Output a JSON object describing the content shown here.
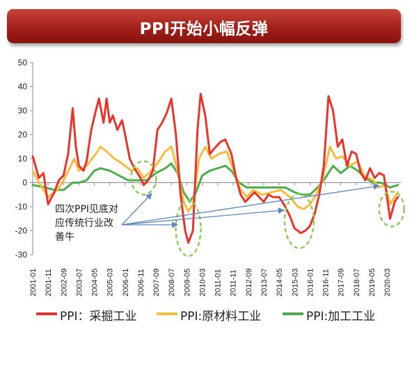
{
  "title": "PPI开始小幅反弹",
  "colors": {
    "mining": "#e8322a",
    "raw": "#f8bc3c",
    "processing": "#4aac4a",
    "banner": "#a31f19",
    "ellipse": "#8ccf5a",
    "arrow": "#5c86bf"
  },
  "annotation": {
    "text": "四次PPI见底对应传统行业改善牛"
  },
  "chart_data": {
    "type": "line",
    "ylim": [
      -30,
      50
    ],
    "yticks": [
      "50",
      "40",
      "30",
      "20",
      "10",
      "0",
      "-10",
      "-20",
      "-30"
    ],
    "xtick_labels": [
      "2001-01",
      "2001-11",
      "2002-09",
      "2003-07",
      "2004-05",
      "2005-03",
      "2006-01",
      "2006-11",
      "2007-09",
      "2008-07",
      "2009-05",
      "2010-03",
      "2011-01",
      "2011-11",
      "2012-09",
      "2013-07",
      "2014-05",
      "2015-03",
      "2016-01",
      "2016-11",
      "2017-09",
      "2018-07",
      "2019-05",
      "2020-03"
    ],
    "xlabel": "",
    "ylabel": "",
    "grid": false,
    "legend_position": "bottom",
    "series": [
      {
        "name": "PPI：采掘工业",
        "key": "mining",
        "points": [
          [
            "2001-01",
            11
          ],
          [
            "2001-05",
            2
          ],
          [
            "2001-08",
            4
          ],
          [
            "2001-11",
            -9
          ],
          [
            "2002-03",
            -4
          ],
          [
            "2002-06",
            1
          ],
          [
            "2002-09",
            3
          ],
          [
            "2002-12",
            12
          ],
          [
            "2003-03",
            31
          ],
          [
            "2003-05",
            15
          ],
          [
            "2003-07",
            7
          ],
          [
            "2003-10",
            5
          ],
          [
            "2003-12",
            9
          ],
          [
            "2004-03",
            22
          ],
          [
            "2004-06",
            30
          ],
          [
            "2004-08",
            35
          ],
          [
            "2004-11",
            25
          ],
          [
            "2005-01",
            35
          ],
          [
            "2005-03",
            25
          ],
          [
            "2005-05",
            28
          ],
          [
            "2005-08",
            22
          ],
          [
            "2005-11",
            26
          ],
          [
            "2006-01",
            20
          ],
          [
            "2006-04",
            10
          ],
          [
            "2006-07",
            6
          ],
          [
            "2006-11",
            2
          ],
          [
            "2007-01",
            -1
          ],
          [
            "2007-04",
            1
          ],
          [
            "2007-07",
            5
          ],
          [
            "2007-10",
            22
          ],
          [
            "2008-01",
            25
          ],
          [
            "2008-04",
            29
          ],
          [
            "2008-07",
            35
          ],
          [
            "2008-10",
            20
          ],
          [
            "2009-01",
            -5
          ],
          [
            "2009-04",
            -20
          ],
          [
            "2009-06",
            -25
          ],
          [
            "2009-09",
            -20
          ],
          [
            "2009-12",
            22
          ],
          [
            "2010-02",
            37
          ],
          [
            "2010-05",
            28
          ],
          [
            "2010-08",
            12
          ],
          [
            "2010-12",
            15
          ],
          [
            "2011-03",
            17
          ],
          [
            "2011-06",
            18
          ],
          [
            "2011-10",
            12
          ],
          [
            "2012-01",
            2
          ],
          [
            "2012-04",
            -5
          ],
          [
            "2012-07",
            -8
          ],
          [
            "2012-10",
            -6
          ],
          [
            "2013-01",
            -4
          ],
          [
            "2013-04",
            -6
          ],
          [
            "2013-07",
            -8
          ],
          [
            "2013-10",
            -5
          ],
          [
            "2014-01",
            -6
          ],
          [
            "2014-05",
            -6
          ],
          [
            "2014-09",
            -10
          ],
          [
            "2014-12",
            -14
          ],
          [
            "2015-03",
            -19
          ],
          [
            "2015-07",
            -21
          ],
          [
            "2015-10",
            -20
          ],
          [
            "2016-01",
            -18
          ],
          [
            "2016-04",
            -13
          ],
          [
            "2016-07",
            -5
          ],
          [
            "2016-10",
            7
          ],
          [
            "2017-01",
            36
          ],
          [
            "2017-04",
            30
          ],
          [
            "2017-07",
            15
          ],
          [
            "2017-10",
            18
          ],
          [
            "2018-01",
            7
          ],
          [
            "2018-04",
            13
          ],
          [
            "2018-07",
            12
          ],
          [
            "2018-10",
            4
          ],
          [
            "2019-01",
            1
          ],
          [
            "2019-04",
            6
          ],
          [
            "2019-07",
            2
          ],
          [
            "2019-10",
            4
          ],
          [
            "2020-01",
            3
          ],
          [
            "2020-05",
            -15
          ],
          [
            "2020-08",
            -8
          ],
          [
            "2020-10",
            -6
          ]
        ]
      },
      {
        "name": "PPI:原材料工业",
        "key": "raw",
        "points": [
          [
            "2001-01",
            5
          ],
          [
            "2001-06",
            -1
          ],
          [
            "2001-11",
            -6
          ],
          [
            "2002-05",
            -3
          ],
          [
            "2002-09",
            1
          ],
          [
            "2003-01",
            6
          ],
          [
            "2003-04",
            10
          ],
          [
            "2003-07",
            5
          ],
          [
            "2003-12",
            7
          ],
          [
            "2004-06",
            12
          ],
          [
            "2004-09",
            15
          ],
          [
            "2005-01",
            13
          ],
          [
            "2005-06",
            10
          ],
          [
            "2005-11",
            8
          ],
          [
            "2006-05",
            5
          ],
          [
            "2006-09",
            6
          ],
          [
            "2007-01",
            2
          ],
          [
            "2007-06",
            5
          ],
          [
            "2007-10",
            8
          ],
          [
            "2008-03",
            13
          ],
          [
            "2008-07",
            15
          ],
          [
            "2008-11",
            5
          ],
          [
            "2009-03",
            -8
          ],
          [
            "2009-06",
            -12
          ],
          [
            "2009-09",
            -9
          ],
          [
            "2010-01",
            10
          ],
          [
            "2010-05",
            15
          ],
          [
            "2010-09",
            10
          ],
          [
            "2011-02",
            12
          ],
          [
            "2011-07",
            13
          ],
          [
            "2011-11",
            6
          ],
          [
            "2012-04",
            -3
          ],
          [
            "2012-08",
            -6
          ],
          [
            "2012-12",
            -3
          ],
          [
            "2013-06",
            -5
          ],
          [
            "2013-12",
            -4
          ],
          [
            "2014-06",
            -3
          ],
          [
            "2014-12",
            -6
          ],
          [
            "2015-05",
            -10
          ],
          [
            "2015-09",
            -11
          ],
          [
            "2016-01",
            -9
          ],
          [
            "2016-05",
            -5
          ],
          [
            "2016-09",
            1
          ],
          [
            "2017-02",
            15
          ],
          [
            "2017-06",
            10
          ],
          [
            "2017-10",
            11
          ],
          [
            "2018-03",
            7
          ],
          [
            "2018-08",
            9
          ],
          [
            "2018-12",
            3
          ],
          [
            "2019-06",
            1
          ],
          [
            "2019-10",
            -2
          ],
          [
            "2020-02",
            -1
          ],
          [
            "2020-05",
            -9
          ],
          [
            "2020-10",
            -4
          ]
        ]
      },
      {
        "name": "PPI:加工工业",
        "key": "processing",
        "points": [
          [
            "2001-01",
            -1
          ],
          [
            "2001-09",
            -2
          ],
          [
            "2002-03",
            -3
          ],
          [
            "2002-09",
            -3
          ],
          [
            "2003-03",
            0
          ],
          [
            "2003-07",
            0
          ],
          [
            "2003-12",
            1
          ],
          [
            "2004-05",
            5
          ],
          [
            "2004-09",
            6
          ],
          [
            "2005-03",
            5
          ],
          [
            "2005-09",
            3
          ],
          [
            "2006-03",
            1
          ],
          [
            "2006-09",
            1
          ],
          [
            "2007-03",
            1
          ],
          [
            "2007-09",
            4
          ],
          [
            "2008-03",
            6
          ],
          [
            "2008-07",
            8
          ],
          [
            "2008-11",
            4
          ],
          [
            "2009-03",
            -4
          ],
          [
            "2009-07",
            -8
          ],
          [
            "2009-11",
            -4
          ],
          [
            "2010-03",
            3
          ],
          [
            "2010-08",
            5
          ],
          [
            "2011-01",
            6
          ],
          [
            "2011-06",
            7
          ],
          [
            "2011-10",
            5
          ],
          [
            "2012-03",
            0
          ],
          [
            "2012-08",
            -2
          ],
          [
            "2013-03",
            -2
          ],
          [
            "2013-09",
            -2
          ],
          [
            "2014-03",
            -2
          ],
          [
            "2014-09",
            -2
          ],
          [
            "2015-03",
            -4
          ],
          [
            "2015-08",
            -5
          ],
          [
            "2016-01",
            -5
          ],
          [
            "2016-06",
            -2
          ],
          [
            "2016-11",
            2
          ],
          [
            "2017-04",
            7
          ],
          [
            "2017-09",
            4
          ],
          [
            "2018-03",
            7
          ],
          [
            "2018-08",
            5
          ],
          [
            "2019-01",
            2
          ],
          [
            "2019-06",
            0
          ],
          [
            "2019-11",
            0
          ],
          [
            "2020-05",
            -2
          ],
          [
            "2020-10",
            -1
          ]
        ]
      }
    ],
    "highlights": [
      {
        "center": "2007-01",
        "y": 2
      },
      {
        "center": "2009-06",
        "y": -19
      },
      {
        "center": "2015-06",
        "y": -16
      },
      {
        "center": "2020-06",
        "y": -11
      }
    ]
  }
}
